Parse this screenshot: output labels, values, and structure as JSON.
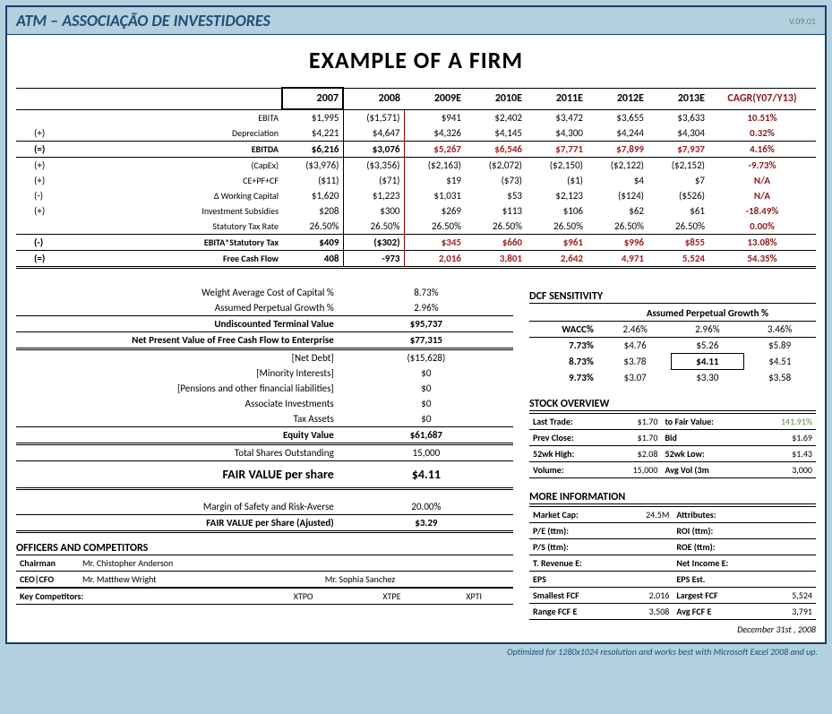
{
  "header": {
    "org": "ATM – ASSOCIAÇÃO DE INVESTIDORES",
    "ver": "V.09.01"
  },
  "title": "EXAMPLE OF A FIRM",
  "years": [
    "2007",
    "2008",
    "2009E",
    "2010E",
    "2011E",
    "2012E",
    "2013E"
  ],
  "cagr_label": "CAGR(Y07/Y13)",
  "rows": [
    {
      "sign": "",
      "label": "EBITA",
      "v": [
        "$1,995",
        "($1,571)",
        "$941",
        "$2,402",
        "$3,472",
        "$3,655",
        "$3,633"
      ],
      "cagr": "10.51%"
    },
    {
      "sign": "(+)",
      "label": "Depreciation",
      "v": [
        "$4,221",
        "$4,647",
        "$4,326",
        "$4,145",
        "$4,300",
        "$4,244",
        "$4,304"
      ],
      "cagr": "0.32%"
    },
    {
      "sign": "(=)",
      "label": "EBITDA",
      "v": [
        "$6,216",
        "$3,076",
        "$5,267",
        "$6,546",
        "$7,771",
        "$7,899",
        "$7,937"
      ],
      "cagr": "4.16%",
      "bold": true
    },
    {
      "sign": "(+)",
      "label": "(CapEx)",
      "v": [
        "($3,976)",
        "($3,356)",
        "($2,163)",
        "($2,072)",
        "($2,150)",
        "($2,122)",
        "($2,152)"
      ],
      "cagr": "-9.73%"
    },
    {
      "sign": "(+)",
      "label": "CE+PF+CF",
      "v": [
        "($11)",
        "($71)",
        "$19",
        "($73)",
        "($1)",
        "$4",
        "$7"
      ],
      "cagr": "N/A"
    },
    {
      "sign": "(-)",
      "label": "Δ Working Capital",
      "v": [
        "$1,620",
        "$1,223",
        "$1,031",
        "$53",
        "$2,123",
        "($124)",
        "($526)"
      ],
      "cagr": "N/A"
    },
    {
      "sign": "(+)",
      "label": "Investment Subsidies",
      "v": [
        "$208",
        "$300",
        "$269",
        "$113",
        "$106",
        "$62",
        "$61"
      ],
      "cagr": "-18.49%"
    },
    {
      "sign": "",
      "label": "Statutory Tax Rate",
      "v": [
        "26.50%",
        "26.50%",
        "26.50%",
        "26.50%",
        "26.50%",
        "26.50%",
        "26.50%"
      ],
      "cagr": "0.00%"
    },
    {
      "sign": "(-)",
      "label": "EBITA*Statutory Tax",
      "v": [
        "$409",
        "($302)",
        "$345",
        "$660",
        "$961",
        "$996",
        "$855"
      ],
      "cagr": "13.08%",
      "bold": true
    },
    {
      "sign": "(=)",
      "label": "Free Cash Flow",
      "v": [
        "408",
        "-973",
        "2,016",
        "3,801",
        "2,642",
        "4,971",
        "5,524"
      ],
      "cagr": "54.35%",
      "bold": true,
      "dbl": true
    }
  ],
  "valuation": [
    {
      "l": "Weight Average Cost of Capital %",
      "v": "8.73%"
    },
    {
      "l": "Assumed Perpetual Growth %",
      "v": "2.96%"
    },
    {
      "l": "Undiscounted Terminal Value",
      "v": "$95,737",
      "b": true
    },
    {
      "l": "Net Present Value of Free Cash Flow to Enterprise",
      "v": "$77,315",
      "b": true,
      "db": true
    },
    {
      "l": "[Net Debt]",
      "v": "($15,628)"
    },
    {
      "l": "[Minority Interests]",
      "v": "$0"
    },
    {
      "l": "[Pensions and other financial liabilities]",
      "v": "$0"
    },
    {
      "l": "Associate Investments",
      "v": "$0"
    },
    {
      "l": "Tax Assets",
      "v": "$0"
    },
    {
      "l": "Equity Value",
      "v": "$61,687",
      "b": true,
      "db": true
    },
    {
      "l": "Total Shares Outstanding",
      "v": "15,000"
    }
  ],
  "fair": {
    "label": "FAIR VALUE per share",
    "value": "$4.11"
  },
  "margin": {
    "l": "Margin of Safety and Risk-Averse",
    "v": "20.00%"
  },
  "fair_adj": {
    "l": "FAIR VALUE per Share (Ajusted)",
    "v": "$3.29"
  },
  "officers_title": "OFFICERS AND COMPETITORS",
  "officers": [
    {
      "role": "Chairman",
      "name": "Mr. Chistopher Anderson",
      "extra": ""
    },
    {
      "role": "CEO|CFO",
      "name": "Mr. Matthew Wright",
      "extra": "Mr. Sophia Sanchez"
    }
  ],
  "competitors": {
    "label": "Key Competitors:",
    "v": [
      "XTPO",
      "XTPE",
      "XPTI"
    ]
  },
  "dcf": {
    "title": "DCF SENSITIVITY",
    "subtitle": "Assumed Perpetual Growth %",
    "cols": [
      "2.46%",
      "2.96%",
      "3.46%"
    ],
    "wacc_label": "WACC%",
    "rows": [
      {
        "w": "7.73%",
        "v": [
          "$4.76",
          "$5.26",
          "$5.89"
        ]
      },
      {
        "w": "8.73%",
        "v": [
          "$3.78",
          "$4.11",
          "$4.51"
        ],
        "hl": 1
      },
      {
        "w": "9.73%",
        "v": [
          "$3.07",
          "$3.30",
          "$3.58"
        ]
      }
    ]
  },
  "stock": {
    "title": "STOCK OVERVIEW",
    "rows": [
      [
        "Last Trade:",
        "$1.70",
        "to Fair Value:",
        "141.91%"
      ],
      [
        "Prev Close:",
        "$1.70",
        "Bid",
        "$1.69"
      ],
      [
        "52wk High:",
        "$2.08",
        "52wk Low:",
        "$1.43"
      ],
      [
        "Volume:",
        "15,000",
        "Avg Vol (3m",
        "3,000"
      ]
    ]
  },
  "more": {
    "title": "MORE INFORMATION",
    "rows": [
      [
        "Market Cap:",
        "24.5M",
        "Attributes:",
        ""
      ],
      [
        "P/E (ttm):",
        "",
        "ROI (ttm):",
        ""
      ],
      [
        "P/S (ttm):",
        "",
        "ROE (ttm):",
        ""
      ],
      [
        "T. Revenue E:",
        "",
        "Net Income E:",
        ""
      ],
      [
        "EPS",
        "",
        "EPS Est.",
        ""
      ],
      [
        "Smallest FCF",
        "2,016",
        "Largest FCF",
        "5,524"
      ],
      [
        "Range FCF E",
        "3,508",
        "Avg FCF E",
        "3,791"
      ]
    ]
  },
  "date": "December 31st , 2008",
  "footer": "Optimized for 1280x1024 resolution and works best with Microsoft Excel 2008 and up."
}
